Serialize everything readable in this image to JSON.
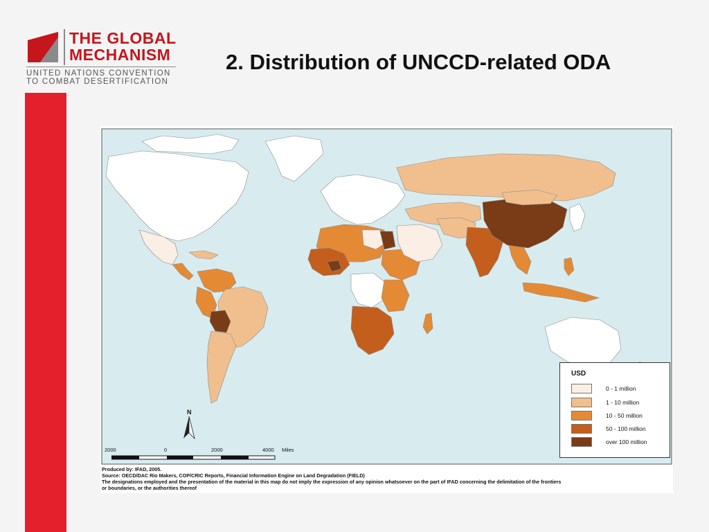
{
  "logo": {
    "title_line1": "THE GLOBAL",
    "title_line2": "MECHANISM",
    "subtitle_line1": "UNITED NATIONS CONVENTION",
    "subtitle_line2": "TO COMBAT DESERTIFICATION",
    "brand_color": "#c4161c"
  },
  "slide": {
    "title": "2. Distribution of UNCCD-related ODA",
    "accent_color": "#e4202d"
  },
  "map": {
    "ocean_color": "#d8ecef",
    "legend": {
      "title": "USD",
      "items": [
        {
          "label": "0 - 1 million",
          "color": "#fbeee4"
        },
        {
          "label": "1 - 10 million",
          "color": "#f1bf8e"
        },
        {
          "label": "10 - 50 million",
          "color": "#e48a35"
        },
        {
          "label": "50 - 100 million",
          "color": "#c45e1d"
        },
        {
          "label": "over 100 million",
          "color": "#7a3b17"
        }
      ]
    },
    "north_label": "N",
    "scale": {
      "labels": [
        "2000",
        "0",
        "2000",
        "4000"
      ],
      "unit": "Miles"
    },
    "credits": {
      "produced_by": "Produced by: IFAD, 2005.",
      "source": "Source: OECD/DAC Rio Makers, COP/CRIC Reports, Financial Information Engine on Land Degradation (FIELD)",
      "disclaimer_line1": "The designations employed and the presentation of the material in this map do not imply the expression of any opinion whatsoever on the part of IFAD concerning the delimitation of the frontiers",
      "disclaimer_line2": "or boundaries, or the authorities thereof"
    }
  }
}
